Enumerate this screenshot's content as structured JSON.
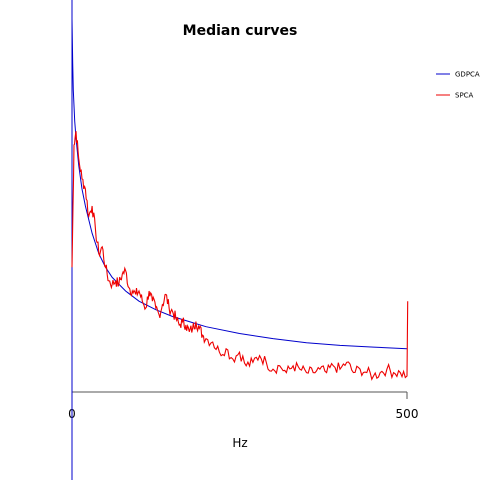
{
  "chart_data": {
    "type": "line",
    "title": "Median curves",
    "xlabel": "Hz",
    "ylabel": "",
    "xlim": [
      0,
      500
    ],
    "x_ticks": [
      0,
      500
    ],
    "grid": false,
    "legend_position": "top-right",
    "series": [
      {
        "name": "GDPCA",
        "color": "#0000cc",
        "x": [
          0,
          1,
          2,
          4,
          6,
          10,
          15,
          20,
          30,
          40,
          50,
          60,
          80,
          100,
          125,
          150,
          175,
          200,
          250,
          300,
          350,
          400,
          450,
          500
        ],
        "y": [
          1.05,
          0.92,
          0.84,
          0.75,
          0.7,
          0.62,
          0.55,
          0.5,
          0.42,
          0.36,
          0.32,
          0.29,
          0.25,
          0.22,
          0.195,
          0.175,
          0.16,
          0.145,
          0.125,
          0.11,
          0.098,
          0.09,
          0.085,
          0.08
        ]
      },
      {
        "name": "SPCA",
        "color": "#ee0000",
        "x": [
          0,
          3,
          6,
          10,
          15,
          20,
          25,
          30,
          35,
          40,
          45,
          50,
          55,
          60,
          65,
          70,
          75,
          80,
          85,
          90,
          95,
          100,
          105,
          110,
          115,
          120,
          125,
          130,
          135,
          140,
          145,
          150,
          155,
          160,
          165,
          170,
          175,
          180,
          185,
          190,
          195,
          200,
          210,
          220,
          230,
          240,
          250,
          260,
          270,
          280,
          290,
          300,
          310,
          320,
          330,
          340,
          350,
          360,
          370,
          380,
          390,
          400,
          410,
          420,
          430,
          440,
          450,
          460,
          470,
          480,
          490,
          500,
          501
        ],
        "y": [
          0.32,
          0.68,
          0.72,
          0.64,
          0.58,
          0.55,
          0.47,
          0.5,
          0.43,
          0.36,
          0.38,
          0.32,
          0.28,
          0.27,
          0.28,
          0.27,
          0.3,
          0.31,
          0.26,
          0.25,
          0.24,
          0.25,
          0.22,
          0.2,
          0.25,
          0.22,
          0.2,
          0.18,
          0.21,
          0.24,
          0.2,
          0.19,
          0.17,
          0.15,
          0.16,
          0.15,
          0.13,
          0.14,
          0.16,
          0.14,
          0.12,
          0.11,
          0.1,
          0.07,
          0.08,
          0.05,
          0.07,
          0.03,
          0.04,
          0.06,
          0.04,
          0.02,
          0.03,
          0.01,
          0.03,
          0.02,
          0.01,
          0.01,
          0.02,
          0.01,
          0.03,
          0.02,
          0.04,
          0.01,
          0.02,
          0.01,
          0.0,
          0.01,
          0.02,
          0.01,
          0.01,
          0.0,
          0.22
        ]
      }
    ]
  }
}
